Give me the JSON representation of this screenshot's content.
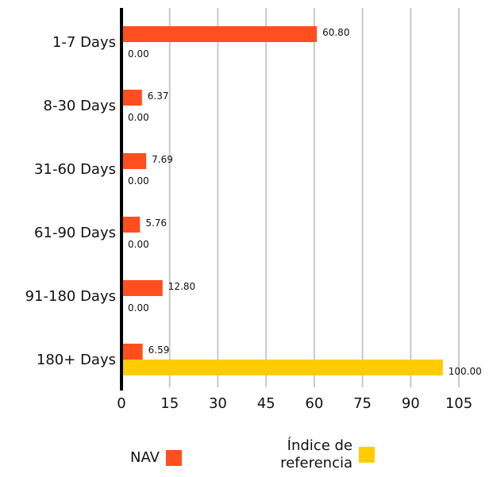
{
  "chart_data": {
    "type": "bar",
    "orientation": "horizontal",
    "categories": [
      "1-7 Days",
      "8-30 Days",
      "31-60 Days",
      "61-90 Days",
      "91-180 Days",
      "180+ Days"
    ],
    "series": [
      {
        "name": "NAV",
        "color": "#ff4f1f",
        "values": [
          60.8,
          6.37,
          7.69,
          5.76,
          12.8,
          6.59
        ],
        "labels": [
          "60.80",
          "6.37",
          "7.69",
          "5.76",
          "12.80",
          "6.59"
        ]
      },
      {
        "name": "Índice de referencia",
        "color": "#ffcc00",
        "values": [
          0.0,
          0.0,
          0.0,
          0.0,
          0.0,
          100.0
        ],
        "labels": [
          "0.00",
          "0.00",
          "0.00",
          "0.00",
          "0.00",
          "100.00"
        ]
      }
    ],
    "xlim": [
      0,
      105
    ],
    "xticks": [
      0,
      15,
      30,
      45,
      60,
      75,
      90,
      105
    ],
    "grid": true,
    "legend_position": "bottom"
  },
  "legend": {
    "nav_label": "NAV",
    "index_label_line1": "Índice de",
    "index_label_line2": "referencia"
  }
}
